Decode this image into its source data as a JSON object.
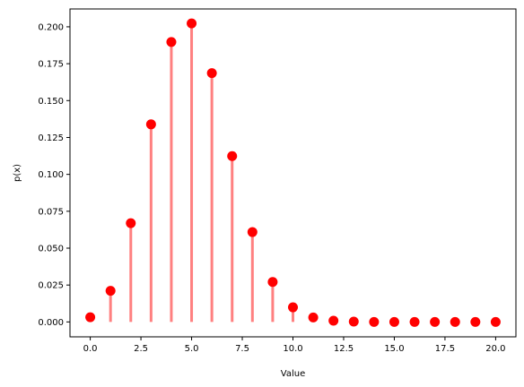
{
  "chart_data": {
    "type": "stem",
    "xlabel": "Value",
    "ylabel": "p(x)",
    "xlim": [
      -1.0,
      21.0
    ],
    "ylim": [
      -0.0101,
      0.2121
    ],
    "x_ticks": [
      0,
      2.5,
      5,
      7.5,
      10,
      12.5,
      15,
      17.5,
      20
    ],
    "x_tick_labels": [
      "0.0",
      "2.5",
      "5.0",
      "7.5",
      "10.0",
      "12.5",
      "15.0",
      "17.5",
      "20.0"
    ],
    "y_ticks": [
      0,
      0.025,
      0.05,
      0.075,
      0.1,
      0.125,
      0.15,
      0.175,
      0.2
    ],
    "y_tick_labels": [
      "0.000",
      "0.025",
      "0.050",
      "0.075",
      "0.100",
      "0.125",
      "0.150",
      "0.175",
      "0.200"
    ],
    "grid": false,
    "marker_color": "#ff0000",
    "stem_color": "#ff8080",
    "x": [
      0,
      1,
      2,
      3,
      4,
      5,
      6,
      7,
      8,
      9,
      10,
      11,
      12,
      13,
      14,
      15,
      16,
      17,
      18,
      19,
      20
    ],
    "values": [
      0.0032,
      0.0211,
      0.0669,
      0.1339,
      0.1897,
      0.2023,
      0.1686,
      0.1124,
      0.0609,
      0.0271,
      0.0099,
      0.003,
      0.0008,
      0.0002,
      0.0,
      0.0,
      0.0,
      0.0,
      0.0,
      0.0,
      0.0
    ]
  }
}
